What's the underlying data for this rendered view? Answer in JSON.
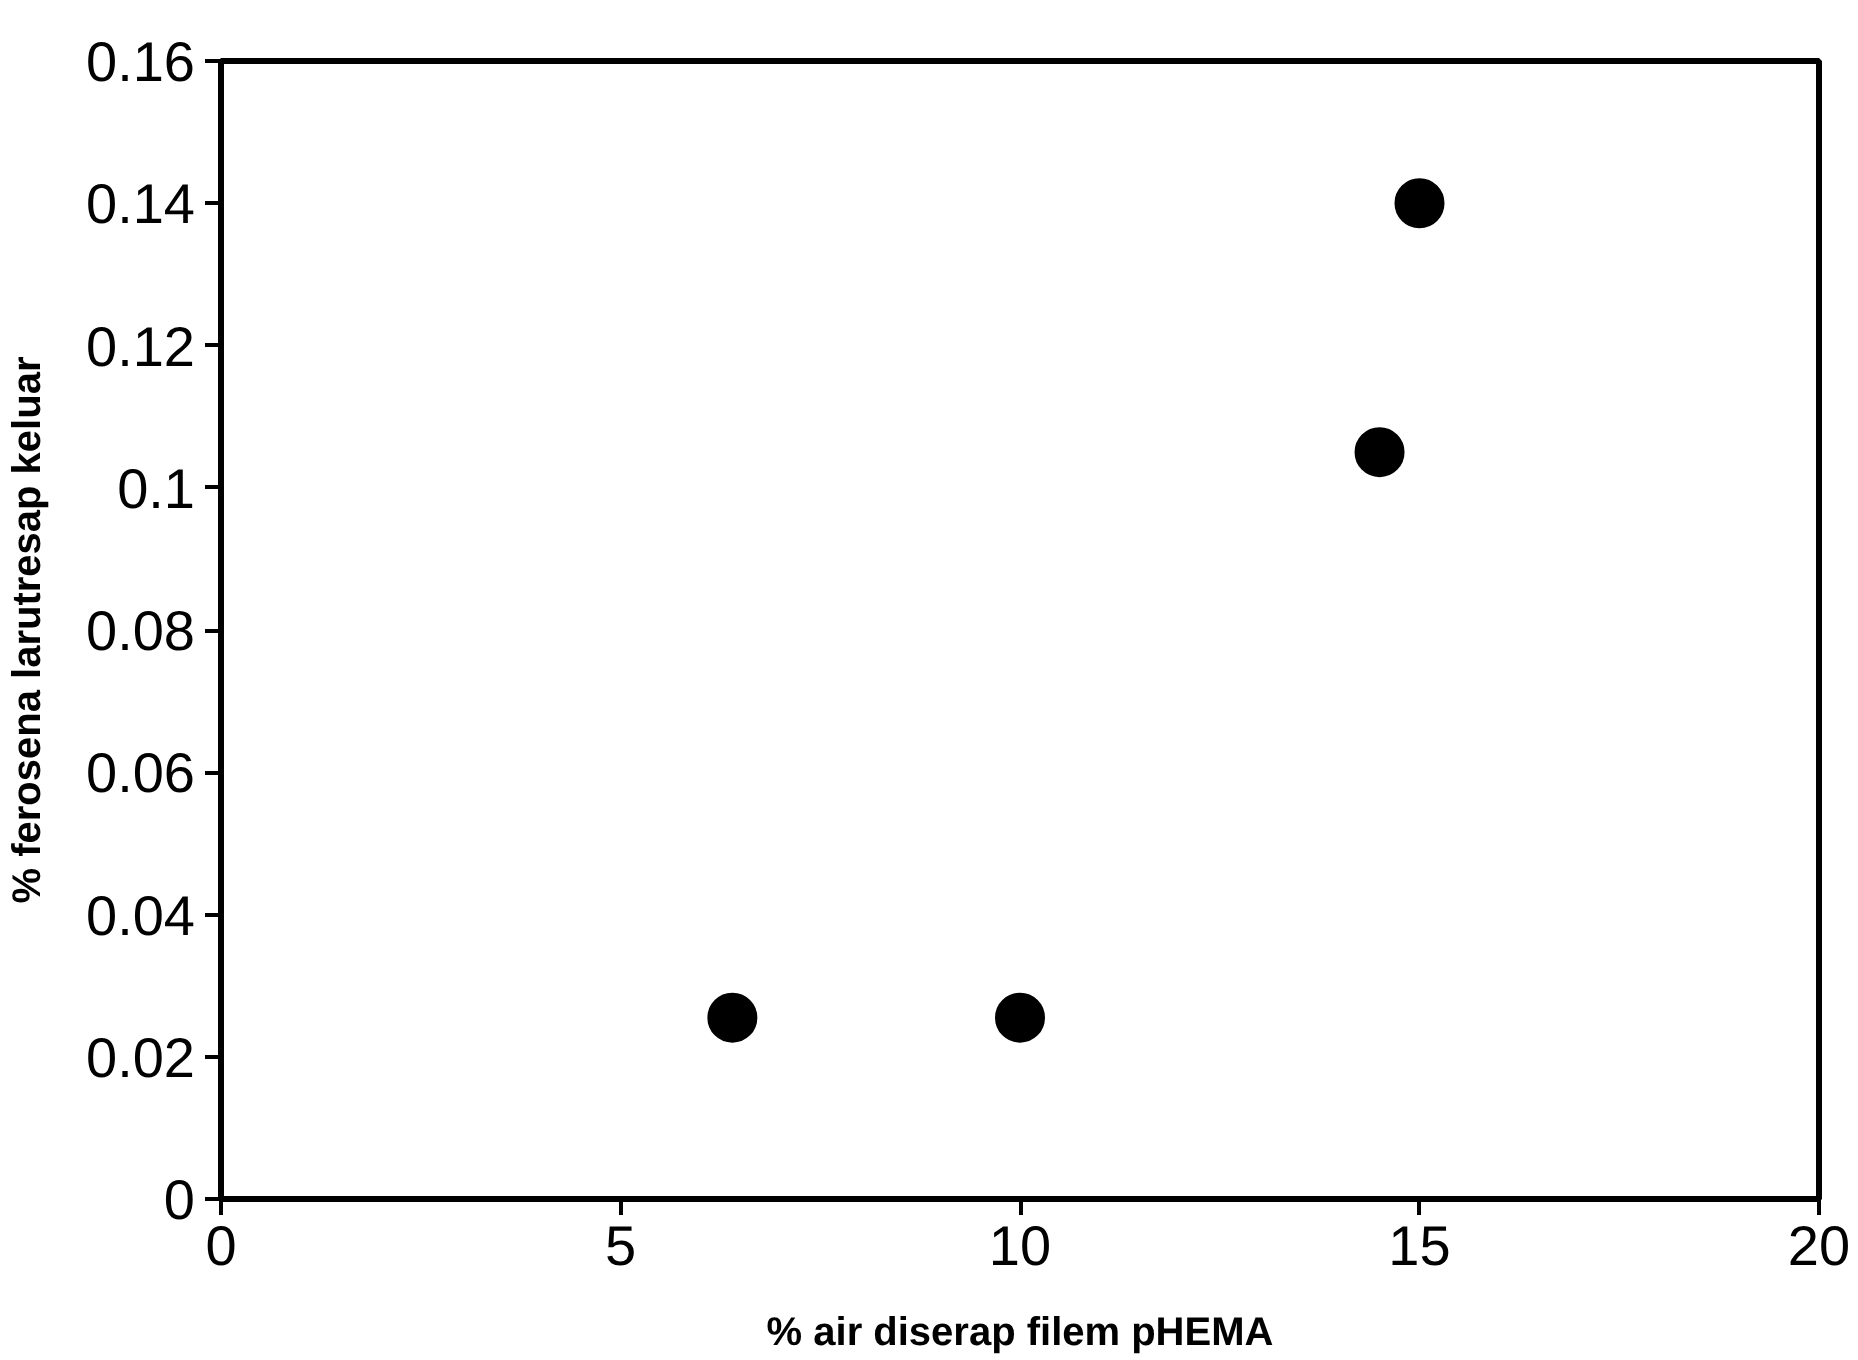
{
  "chart_data": {
    "type": "scatter",
    "xlabel": "% air diserap filem pHEMA",
    "ylabel": "% ferosena larutresap keluar",
    "x": [
      6.4,
      10,
      14.5,
      15
    ],
    "series": [
      {
        "color": "#000000",
        "values": [
          0.0255,
          0.0255,
          0.105,
          0.14
        ]
      }
    ],
    "xlim": [
      0,
      20
    ],
    "xticks": [
      0,
      5,
      10,
      15,
      20
    ],
    "ylim": [
      0,
      0.16
    ],
    "yticks": [
      0,
      0.02,
      0.04,
      0.06,
      0.08,
      0.1,
      0.12,
      0.14,
      0.16
    ],
    "marker": "circle"
  }
}
